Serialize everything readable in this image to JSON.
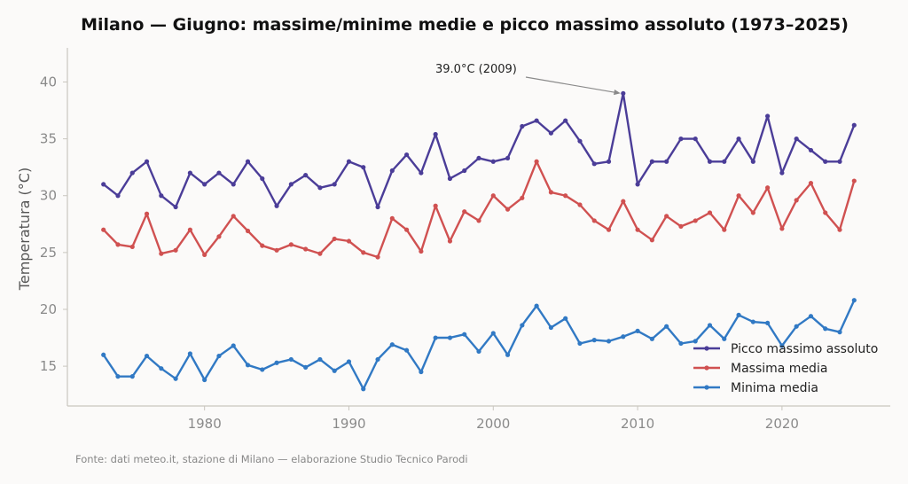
{
  "chart_data": {
    "type": "line",
    "title": "Milano — Giugno: massime/minime medie e picco massimo assoluto (1973–2025)",
    "xlabel": "",
    "ylabel": "Temperatura (°C)",
    "x_start": 1973,
    "xlim": [
      1970.5,
      2027.5
    ],
    "ylim": [
      11.5,
      43
    ],
    "xticks": [
      1980,
      1990,
      2000,
      2010,
      2020
    ],
    "yticks": [
      15,
      20,
      25,
      30,
      35,
      40
    ],
    "legend_position": "lower-right",
    "grid": false,
    "series": [
      {
        "name": "Picco massimo assoluto",
        "color": "#4b3d98",
        "values": [
          31.0,
          30.0,
          32.0,
          33.0,
          30.0,
          29.0,
          32.0,
          31.0,
          32.0,
          31.0,
          33.0,
          31.5,
          29.1,
          31.0,
          31.8,
          30.7,
          31.0,
          33.0,
          32.5,
          29.0,
          32.2,
          33.6,
          32.0,
          35.4,
          31.5,
          32.2,
          33.3,
          33.0,
          33.3,
          36.1,
          36.6,
          35.5,
          36.6,
          34.8,
          32.8,
          33.0,
          39.0,
          31.0,
          33.0,
          33.0,
          35.0,
          35.0,
          33.0,
          33.0,
          35.0,
          33.0,
          37.0,
          32.0,
          35.0,
          34.0,
          33.0,
          33.0,
          36.2
        ]
      },
      {
        "name": "Massima media",
        "color": "#d05151",
        "values": [
          27.0,
          25.7,
          25.5,
          28.4,
          24.9,
          25.2,
          27.0,
          24.8,
          26.4,
          28.2,
          26.9,
          25.6,
          25.2,
          25.7,
          25.3,
          24.9,
          26.2,
          26.0,
          25.0,
          24.6,
          28.0,
          27.0,
          25.1,
          29.1,
          26.0,
          28.6,
          27.8,
          30.0,
          28.8,
          29.8,
          33.0,
          30.3,
          30.0,
          29.2,
          27.8,
          27.0,
          29.5,
          27.0,
          26.1,
          28.2,
          27.3,
          27.8,
          28.5,
          27.0,
          30.0,
          28.5,
          30.7,
          27.1,
          29.6,
          31.1,
          28.5,
          27.0,
          31.3
        ]
      },
      {
        "name": "Minima media",
        "color": "#3179c4",
        "values": [
          16.0,
          14.1,
          14.1,
          15.9,
          14.8,
          13.9,
          16.1,
          13.8,
          15.9,
          16.8,
          15.1,
          14.7,
          15.3,
          15.6,
          14.9,
          15.6,
          14.6,
          15.4,
          13.0,
          15.6,
          16.9,
          16.4,
          14.5,
          17.5,
          17.5,
          17.8,
          16.3,
          17.9,
          16.0,
          18.6,
          20.3,
          18.4,
          19.2,
          17.0,
          17.3,
          17.2,
          17.6,
          18.1,
          17.4,
          18.5,
          17.0,
          17.2,
          18.6,
          17.4,
          19.5,
          18.9,
          18.8,
          16.8,
          18.5,
          19.4,
          18.3,
          18.0,
          20.8
        ]
      }
    ],
    "annotations": [
      {
        "text": "39.0°C (2009)",
        "x": 2009,
        "y": 39.0
      }
    ],
    "source": "Fonte: dati meteo.it, stazione di Milano — elaborazione Studio Tecnico Parodi"
  }
}
